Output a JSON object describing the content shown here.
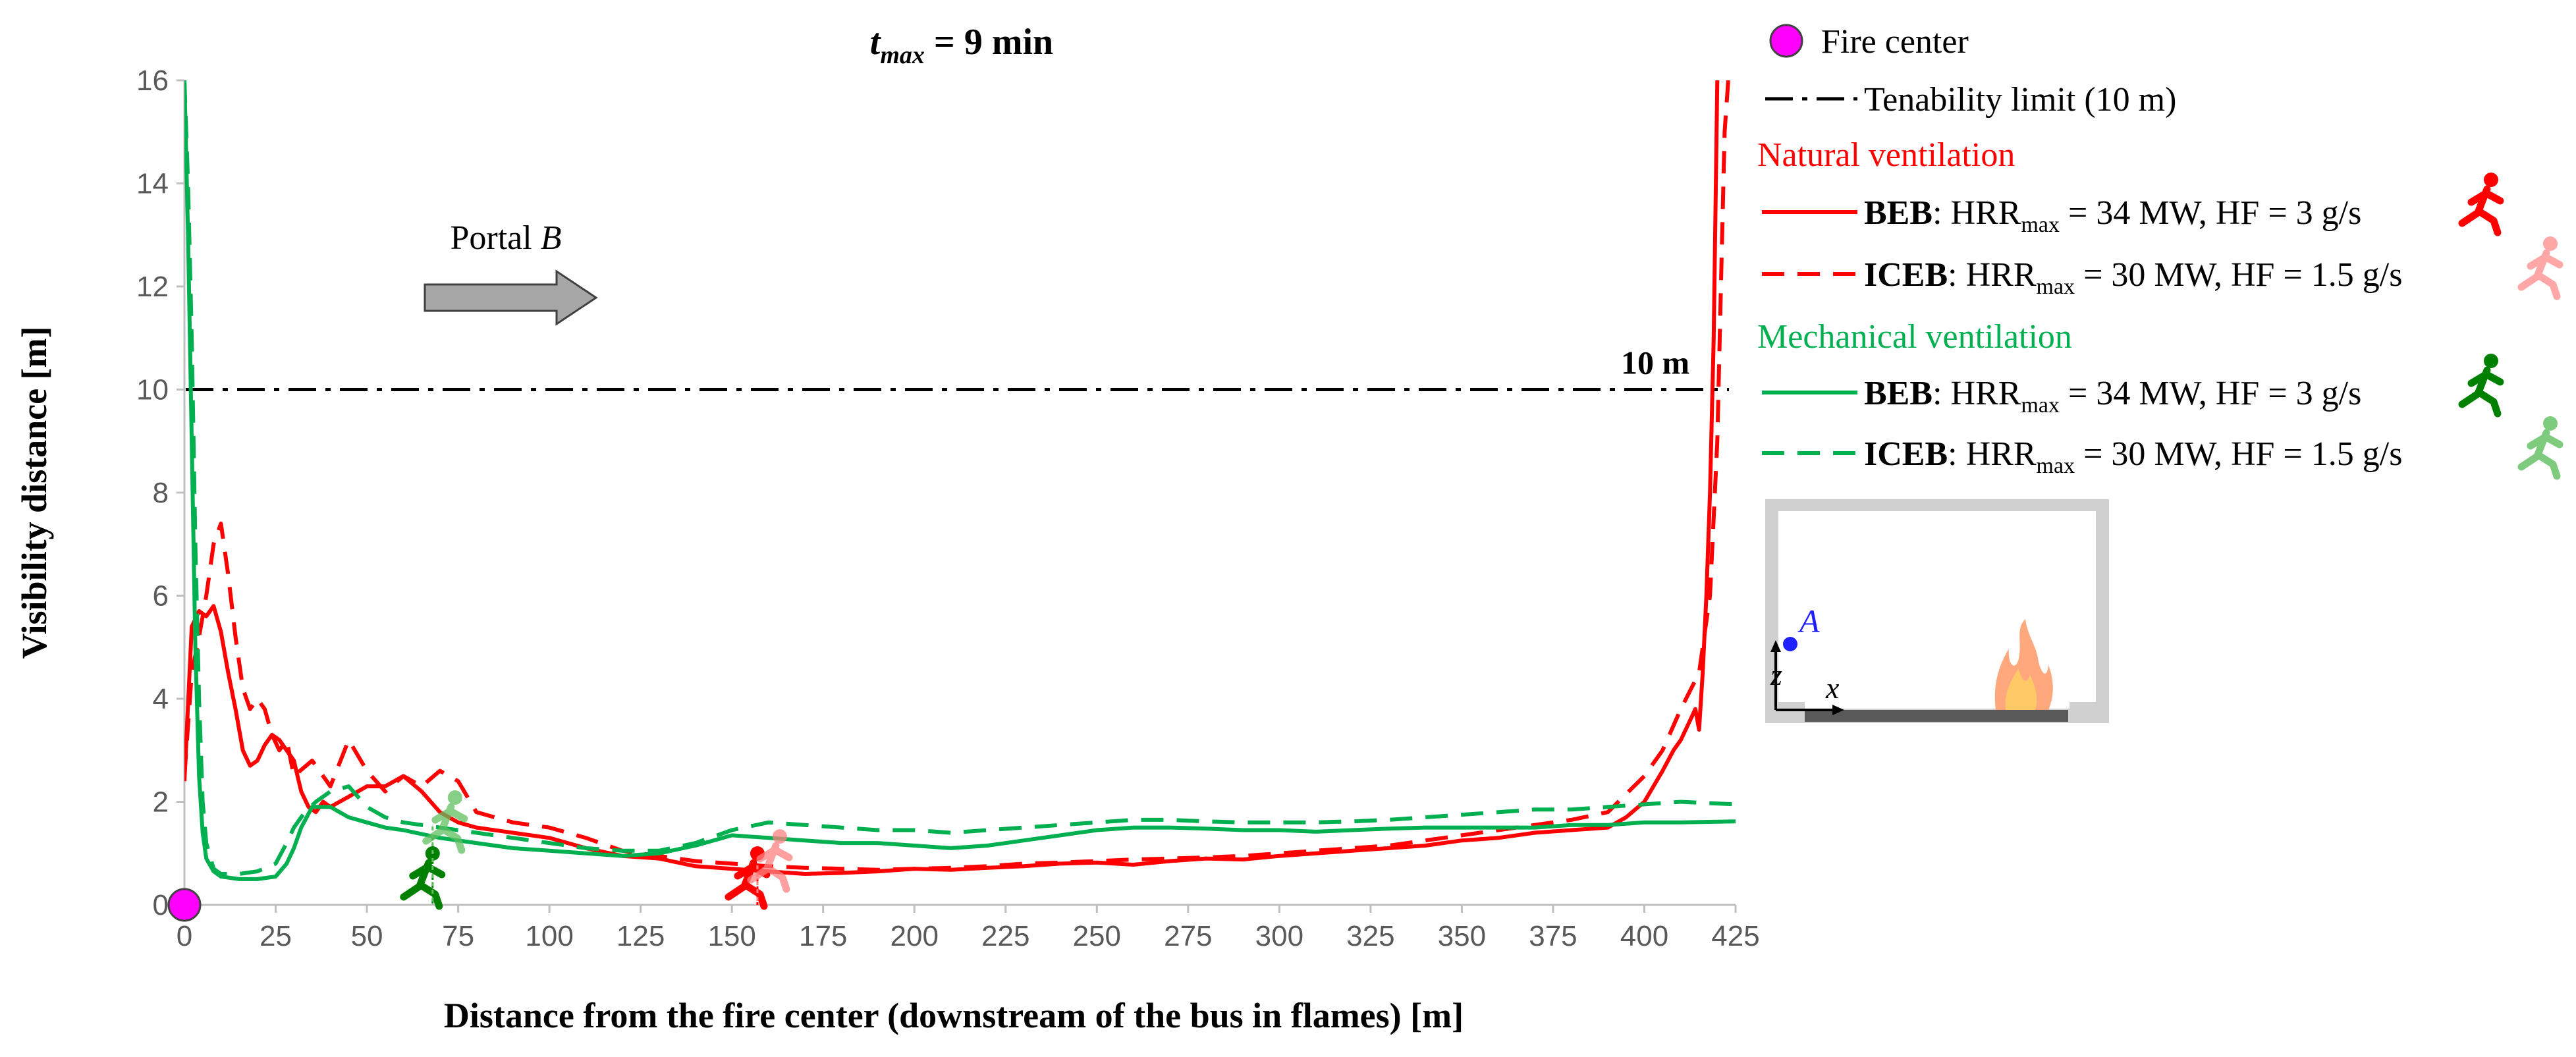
{
  "chart_data": {
    "type": "line",
    "title": {
      "var": "t",
      "sub": "max",
      "rest": " = 9 min"
    },
    "xlabel": "Distance from the fire center (downstream of the bus in flames) [m]",
    "ylabel": "Visibility distance [m]",
    "xlim": [
      0,
      425
    ],
    "ylim": [
      0,
      16
    ],
    "xticks": [
      0,
      25,
      50,
      75,
      100,
      125,
      150,
      175,
      200,
      225,
      250,
      275,
      300,
      325,
      350,
      375,
      400,
      425
    ],
    "yticks": [
      0,
      2,
      4,
      6,
      8,
      10,
      12,
      14,
      16
    ],
    "fire_center": {
      "x": 0,
      "y": 0,
      "label": "Fire center",
      "color": "#ff00ff"
    },
    "tenability": {
      "y": 10,
      "legend": "Tenability limit (10 m)",
      "label": "10 m"
    },
    "portal": {
      "text": "Portal ",
      "italic": "B"
    },
    "groups": {
      "natural": "Natural ventilation",
      "mechanical": "Mechanical ventilation"
    },
    "colors": {
      "natural": "#ff0000",
      "mechanical": "#00b050",
      "mechanical_runner": "#008000",
      "tenability": "#000000",
      "arrow_fill": "#a6a6a6"
    },
    "series": [
      {
        "id": "nat_beb",
        "group": "natural",
        "style": "solid",
        "bold": "BEB",
        "hrr": "34 MW",
        "hf": "3 g/s",
        "x": [
          0,
          2,
          4,
          6,
          8,
          10,
          12,
          14,
          16,
          18,
          20,
          22,
          24,
          26,
          28,
          30,
          32,
          34,
          36,
          38,
          40,
          45,
          50,
          55,
          60,
          65,
          70,
          75,
          80,
          90,
          100,
          110,
          120,
          130,
          140,
          150,
          160,
          170,
          180,
          190,
          200,
          210,
          220,
          230,
          240,
          250,
          260,
          270,
          280,
          290,
          300,
          310,
          320,
          330,
          340,
          350,
          360,
          370,
          380,
          390,
          395,
          400,
          405,
          408,
          410,
          412,
          414,
          415,
          416,
          417,
          418,
          419,
          420
        ],
        "y": [
          2.4,
          5.4,
          5.7,
          5.6,
          5.8,
          5.3,
          4.5,
          3.8,
          3.0,
          2.7,
          2.8,
          3.1,
          3.3,
          3.2,
          3.0,
          2.8,
          2.2,
          1.9,
          1.8,
          2.0,
          1.9,
          2.1,
          2.3,
          2.3,
          2.5,
          2.2,
          1.8,
          1.6,
          1.5,
          1.4,
          1.3,
          1.1,
          0.95,
          0.9,
          0.75,
          0.7,
          0.65,
          0.6,
          0.62,
          0.65,
          0.7,
          0.68,
          0.72,
          0.75,
          0.8,
          0.82,
          0.78,
          0.85,
          0.9,
          0.88,
          0.95,
          1.0,
          1.05,
          1.1,
          1.15,
          1.25,
          1.3,
          1.4,
          1.45,
          1.5,
          1.7,
          2.0,
          2.6,
          3.0,
          3.2,
          3.5,
          3.8,
          3.4,
          4.5,
          6,
          8,
          11,
          16
        ]
      },
      {
        "id": "nat_iceb",
        "group": "natural",
        "style": "dashed",
        "bold": "ICEB",
        "hrr": "30 MW",
        "hf": "1.5 g/s",
        "x": [
          0,
          2,
          4,
          6,
          8,
          10,
          12,
          14,
          16,
          18,
          20,
          22,
          24,
          26,
          28,
          30,
          35,
          40,
          45,
          50,
          55,
          60,
          65,
          70,
          75,
          80,
          90,
          100,
          110,
          120,
          130,
          140,
          150,
          160,
          170,
          180,
          190,
          200,
          210,
          220,
          230,
          240,
          250,
          260,
          270,
          280,
          290,
          300,
          310,
          320,
          330,
          340,
          350,
          360,
          370,
          380,
          390,
          400,
          405,
          410,
          415,
          418,
          420,
          421,
          422,
          423
        ],
        "y": [
          2.5,
          4.5,
          5.2,
          6.0,
          7.0,
          7.4,
          6.4,
          5.2,
          4.2,
          3.8,
          4.0,
          3.8,
          3.3,
          3.0,
          3.2,
          2.5,
          2.8,
          2.3,
          3.2,
          2.6,
          2.2,
          2.5,
          2.3,
          2.6,
          2.4,
          1.8,
          1.6,
          1.5,
          1.3,
          1.05,
          0.95,
          0.85,
          0.8,
          0.75,
          0.72,
          0.7,
          0.68,
          0.7,
          0.72,
          0.75,
          0.8,
          0.82,
          0.85,
          0.88,
          0.9,
          0.92,
          0.95,
          1.0,
          1.05,
          1.1,
          1.15,
          1.25,
          1.35,
          1.45,
          1.55,
          1.65,
          1.8,
          2.5,
          3.0,
          3.8,
          4.5,
          6,
          9,
          12,
          15,
          16
        ]
      },
      {
        "id": "mech_beb",
        "group": "mechanical",
        "style": "solid",
        "bold": "BEB",
        "hrr": "34 MW",
        "hf": "3 g/s",
        "x": [
          0,
          1,
          2,
          3,
          4,
          5,
          6,
          8,
          10,
          15,
          20,
          25,
          28,
          30,
          32,
          35,
          40,
          45,
          50,
          55,
          60,
          70,
          80,
          90,
          100,
          110,
          120,
          130,
          140,
          150,
          160,
          170,
          180,
          190,
          200,
          210,
          220,
          230,
          240,
          250,
          260,
          270,
          280,
          290,
          300,
          310,
          320,
          330,
          340,
          350,
          360,
          370,
          380,
          390,
          400,
          410,
          425
        ],
        "y": [
          16,
          13,
          9,
          5,
          2.5,
          1.4,
          0.9,
          0.65,
          0.55,
          0.5,
          0.5,
          0.55,
          0.8,
          1.1,
          1.5,
          1.9,
          1.9,
          1.7,
          1.6,
          1.5,
          1.45,
          1.3,
          1.2,
          1.1,
          1.05,
          1.0,
          0.95,
          1.0,
          1.15,
          1.35,
          1.3,
          1.25,
          1.2,
          1.2,
          1.15,
          1.1,
          1.15,
          1.25,
          1.35,
          1.45,
          1.5,
          1.5,
          1.48,
          1.45,
          1.45,
          1.42,
          1.45,
          1.48,
          1.5,
          1.5,
          1.5,
          1.5,
          1.55,
          1.55,
          1.6,
          1.6,
          1.62
        ]
      },
      {
        "id": "mech_iceb",
        "group": "mechanical",
        "style": "dashed",
        "bold": "ICEB",
        "hrr": "30 MW",
        "hf": "1.5 g/s",
        "x": [
          0,
          1,
          2,
          3,
          4,
          5,
          6,
          8,
          10,
          15,
          20,
          25,
          28,
          30,
          33,
          36,
          40,
          45,
          50,
          55,
          60,
          70,
          80,
          90,
          100,
          110,
          120,
          130,
          140,
          150,
          160,
          170,
          180,
          190,
          200,
          210,
          220,
          230,
          240,
          250,
          260,
          270,
          280,
          290,
          300,
          310,
          320,
          330,
          340,
          350,
          360,
          370,
          380,
          390,
          400,
          410,
          425
        ],
        "y": [
          16,
          14,
          11,
          7,
          4,
          2,
          1.2,
          0.7,
          0.6,
          0.6,
          0.65,
          0.8,
          1.2,
          1.5,
          1.8,
          2.0,
          2.2,
          2.3,
          1.9,
          1.7,
          1.6,
          1.5,
          1.4,
          1.3,
          1.2,
          1.1,
          1.05,
          1.05,
          1.2,
          1.45,
          1.6,
          1.55,
          1.5,
          1.45,
          1.45,
          1.4,
          1.45,
          1.5,
          1.55,
          1.6,
          1.65,
          1.65,
          1.62,
          1.6,
          1.6,
          1.6,
          1.62,
          1.65,
          1.7,
          1.75,
          1.8,
          1.85,
          1.85,
          1.9,
          1.95,
          2.0,
          1.95
        ]
      }
    ],
    "evacuees": [
      {
        "series": "nat_beb",
        "x": 157,
        "style": "solid"
      },
      {
        "series": "nat_iceb",
        "x": 157,
        "style": "faded"
      },
      {
        "series": "mech_beb",
        "x": 68,
        "style": "solid"
      },
      {
        "series": "mech_iceb",
        "x": 68,
        "style": "faded"
      }
    ],
    "inset": {
      "point_label": "A",
      "z_label": "z",
      "x_label": "x"
    }
  }
}
